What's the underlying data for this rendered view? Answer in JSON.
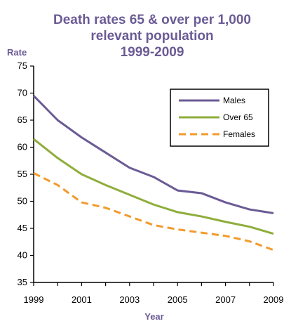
{
  "chart_data": {
    "type": "line",
    "title_lines": [
      "Death rates 65 & over per 1,000",
      "relevant population",
      "1999-2009"
    ],
    "xlabel": "Year",
    "ylabel": "Rate",
    "x": [
      1999,
      2000,
      2001,
      2002,
      2003,
      2004,
      2005,
      2006,
      2007,
      2008,
      2009
    ],
    "x_tick_labels": [
      "1999",
      "2001",
      "2003",
      "2005",
      "2007",
      "2009"
    ],
    "x_tick_values": [
      1999,
      2001,
      2003,
      2005,
      2007,
      2009
    ],
    "xlim": [
      1999,
      2009
    ],
    "ylim": [
      35,
      75
    ],
    "y_ticks": [
      35,
      40,
      45,
      50,
      55,
      60,
      65,
      70,
      75
    ],
    "grid": false,
    "legend_position": "top-right",
    "series": [
      {
        "name": "Males",
        "color": "#6b5b95",
        "dash": "solid",
        "values": [
          69.5,
          65.0,
          61.8,
          59.0,
          56.2,
          54.5,
          52.0,
          51.5,
          49.8,
          48.5,
          47.8
        ]
      },
      {
        "name": "Over 65",
        "color": "#8fad3c",
        "dash": "solid",
        "values": [
          61.5,
          58.0,
          55.0,
          53.0,
          51.2,
          49.4,
          48.0,
          47.2,
          46.2,
          45.3,
          44.0
        ]
      },
      {
        "name": "Females",
        "color": "#f39a2c",
        "dash": "dashed",
        "values": [
          55.2,
          53.0,
          49.8,
          48.8,
          47.2,
          45.6,
          44.8,
          44.2,
          43.6,
          42.6,
          41.0
        ]
      }
    ]
  }
}
